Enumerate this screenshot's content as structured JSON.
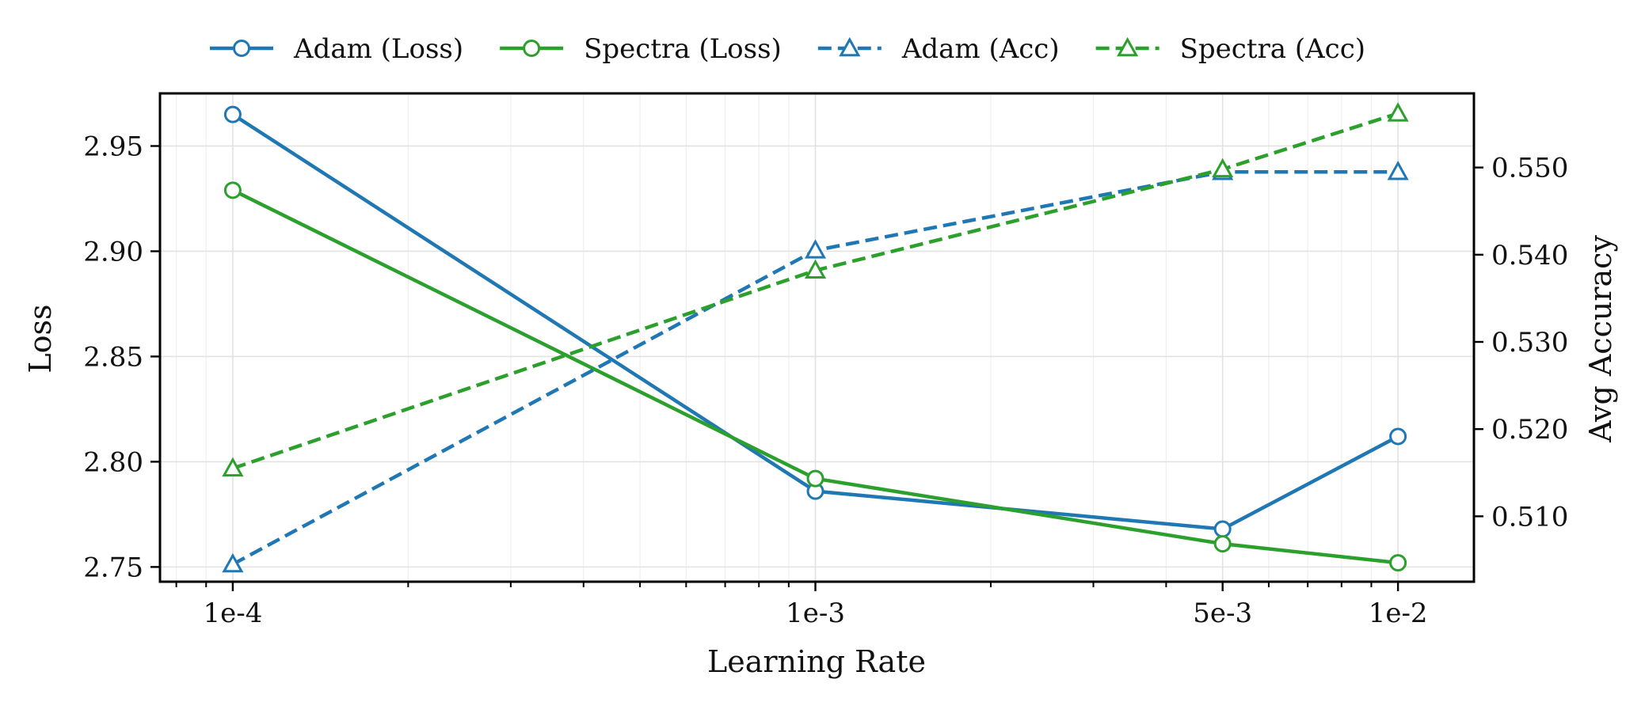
{
  "chart_data": {
    "type": "line",
    "title": "",
    "x": [
      0.0001,
      0.001,
      0.005,
      0.01
    ],
    "x_tick_labels": [
      "1e-4",
      "1e-3",
      "5e-3",
      "1e-2"
    ],
    "x_scale": "log",
    "xlim": [
      7.5e-05,
      0.0135
    ],
    "xlabel": "Learning Rate",
    "ylabel": "Loss",
    "ylim": [
      2.743,
      2.975
    ],
    "y_ticks": [
      2.75,
      2.8,
      2.85,
      2.9,
      2.95
    ],
    "y_tick_labels": [
      "2.75",
      "2.80",
      "2.85",
      "2.90",
      "2.95"
    ],
    "y2label": "Avg Accuracy",
    "y2lim": [
      0.5025,
      0.5585
    ],
    "y2_ticks": [
      0.51,
      0.52,
      0.53,
      0.54,
      0.55
    ],
    "y2_tick_labels": [
      "0.510",
      "0.520",
      "0.530",
      "0.540",
      "0.550"
    ],
    "grid": true,
    "legend_position": "top-center",
    "series": [
      {
        "name": "Adam (Loss)",
        "axis": "left",
        "color": "#1f77b4",
        "linestyle": "solid",
        "marker": "circle",
        "values": [
          2.965,
          2.786,
          2.768,
          2.812
        ]
      },
      {
        "name": "Spectra (Loss)",
        "axis": "left",
        "color": "#2ca02c",
        "linestyle": "solid",
        "marker": "circle",
        "values": [
          2.929,
          2.792,
          2.761,
          2.752
        ]
      },
      {
        "name": "Adam (Acc)",
        "axis": "right",
        "color": "#1f77b4",
        "linestyle": "dashed",
        "marker": "triangle",
        "values": [
          0.5045,
          0.5405,
          0.5495,
          0.5495
        ]
      },
      {
        "name": "Spectra (Acc)",
        "axis": "right",
        "color": "#2ca02c",
        "linestyle": "dashed",
        "marker": "triangle",
        "values": [
          0.5155,
          0.5382,
          0.5498,
          0.5562
        ]
      }
    ]
  }
}
